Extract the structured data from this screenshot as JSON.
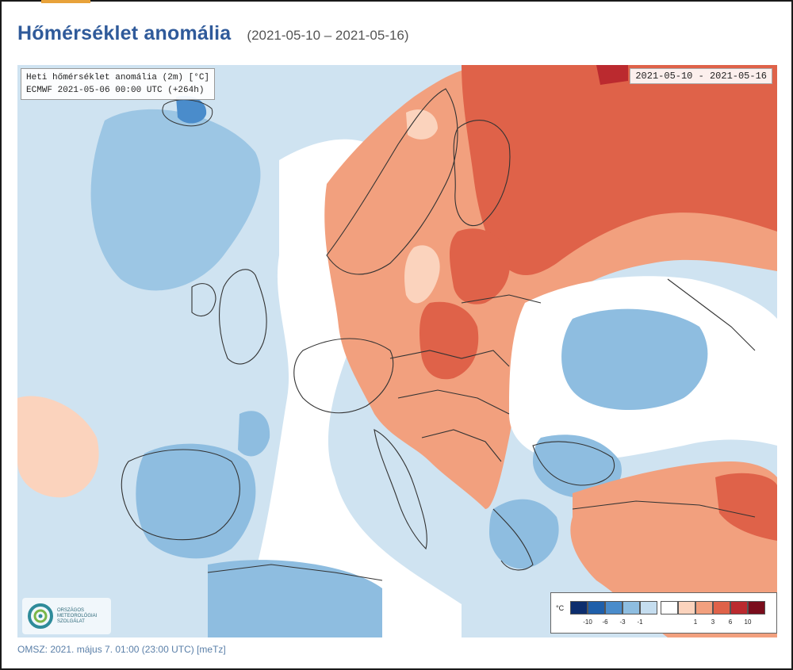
{
  "title": "Hőmérséklet anomália",
  "period": "(2021-05-10 – 2021-05-16)",
  "info": {
    "line1": "Heti hőmérséklet anomália (2m) [°C]",
    "line2": "ECMWF 2021-05-06 00:00 UTC (+264h)"
  },
  "date_badge": "2021-05-10 - 2021-05-16",
  "logo": {
    "text": "Országos Meteorológiai Szolgálat",
    "icon": "omsz-swirl-icon"
  },
  "legend": {
    "unit": "°C",
    "colors": [
      "#0d2e6e",
      "#1f5faa",
      "#4a8ccb",
      "#8ebde0",
      "#c5ddef",
      "#ffffff",
      "#fbd3bd",
      "#f2a07e",
      "#df6249",
      "#bb2a2f",
      "#7a0d1c"
    ],
    "ticks": [
      "-10",
      "-6",
      "-3",
      "-1",
      "1",
      "3",
      "6",
      "10"
    ]
  },
  "footer": "OMSZ: 2021. május 7. 01:00 (23:00  UTC)  [meTz]",
  "colors": {
    "title": "#2f5a9a",
    "sea_base": "#cfe3f1",
    "warm_anomaly": "#df6249",
    "cold_anomaly": "#8ebde0"
  }
}
